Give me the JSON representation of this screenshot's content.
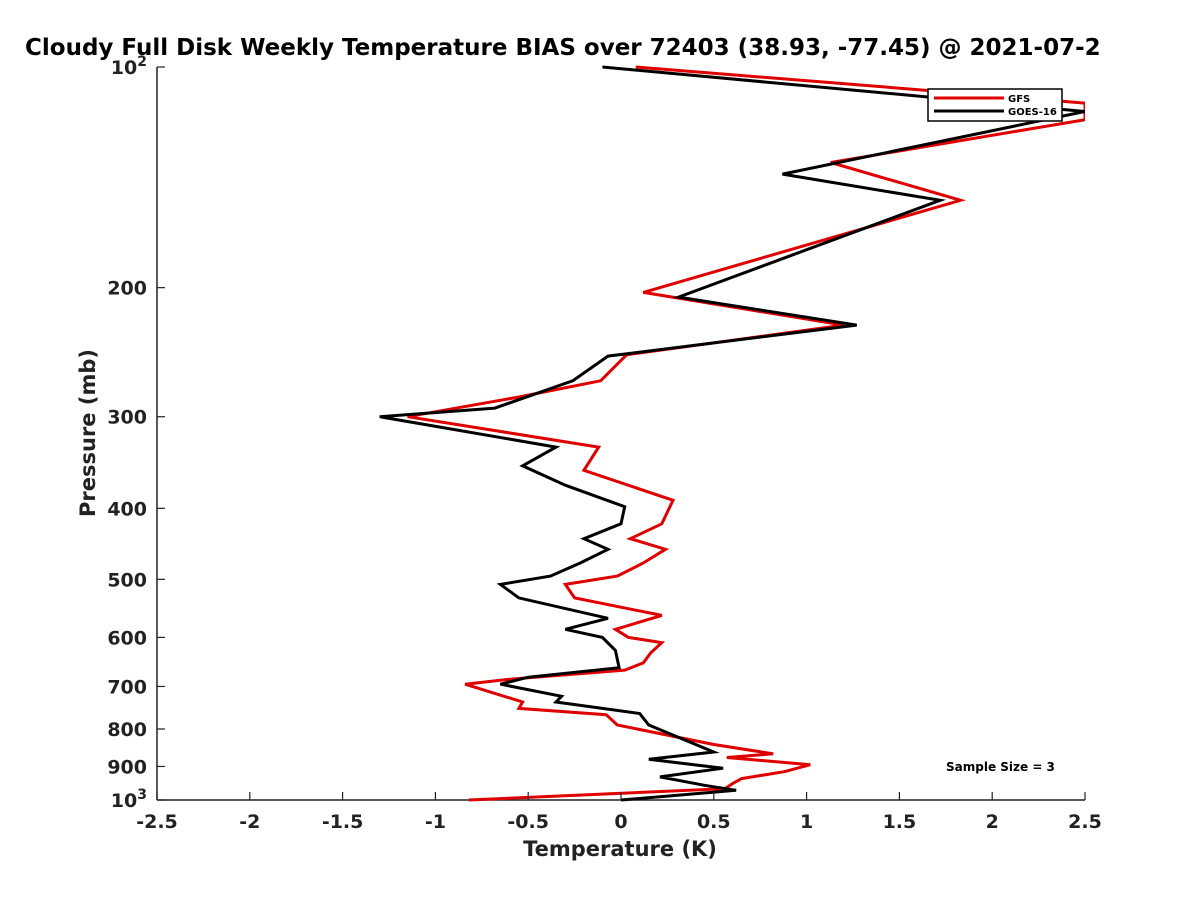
{
  "chart_data": {
    "type": "line",
    "title": "Cloudy Full Disk Weekly Temperature BIAS over 72403 (38.93, -77.45) @ 2021-07-2",
    "xlabel": "Temperature (K)",
    "ylabel": "Pressure (mb)",
    "xlim": [
      -2.5,
      2.5
    ],
    "ylim": [
      1000,
      100
    ],
    "yscale": "log",
    "y_reversed": true,
    "grid": false,
    "legend_position": "top-right",
    "x_ticks": [
      "-2.5",
      "-2",
      "-1.5",
      "-1",
      "-0.5",
      "0",
      "0.5",
      "1",
      "1.5",
      "2",
      "2.5"
    ],
    "x_tick_values": [
      -2.5,
      -2,
      -1.5,
      -1,
      -0.5,
      0,
      0.5,
      1,
      1.5,
      2,
      2.5
    ],
    "y_ticks": [
      {
        "value": 100,
        "base": "10",
        "exp": "2"
      },
      {
        "value": 200,
        "label": "200"
      },
      {
        "value": 300,
        "label": "300"
      },
      {
        "value": 400,
        "label": "400"
      },
      {
        "value": 500,
        "label": "500"
      },
      {
        "value": 600,
        "label": "600"
      },
      {
        "value": 700,
        "label": "700"
      },
      {
        "value": 800,
        "label": "800"
      },
      {
        "value": 900,
        "label": "900"
      },
      {
        "value": 1000,
        "base": "10",
        "exp": "3"
      }
    ],
    "annotation": "Sample Size = 3",
    "series": [
      {
        "name": "GFS",
        "color": "#e00000",
        "points": [
          [
            0.08,
            100
          ],
          [
            2.5,
            112
          ],
          [
            2.5,
            118
          ],
          [
            1.13,
            135
          ],
          [
            1.83,
            152
          ],
          [
            0.12,
            203
          ],
          [
            1.2,
            225
          ],
          [
            0.03,
            247
          ],
          [
            -0.11,
            268
          ],
          [
            -0.55,
            282
          ],
          [
            -1.15,
            300
          ],
          [
            -0.12,
            330
          ],
          [
            -0.2,
            355
          ],
          [
            0.28,
            390
          ],
          [
            0.22,
            420
          ],
          [
            0.05,
            440
          ],
          [
            0.24,
            455
          ],
          [
            0.12,
            475
          ],
          [
            -0.02,
            495
          ],
          [
            -0.3,
            508
          ],
          [
            -0.25,
            530
          ],
          [
            0.22,
            560
          ],
          [
            -0.03,
            585
          ],
          [
            0.04,
            600
          ],
          [
            0.22,
            610
          ],
          [
            0.16,
            630
          ],
          [
            0.12,
            650
          ],
          [
            0.02,
            665
          ],
          [
            -0.62,
            685
          ],
          [
            -0.84,
            695
          ],
          [
            -0.53,
            735
          ],
          [
            -0.55,
            750
          ],
          [
            -0.08,
            765
          ],
          [
            -0.02,
            790
          ],
          [
            0.5,
            840
          ],
          [
            0.82,
            865
          ],
          [
            0.57,
            875
          ],
          [
            1.02,
            895
          ],
          [
            0.88,
            915
          ],
          [
            0.65,
            935
          ],
          [
            0.6,
            950
          ],
          [
            0.56,
            965
          ],
          [
            -0.82,
            1000
          ]
        ]
      },
      {
        "name": "GOES-16",
        "color": "#000000",
        "points": [
          [
            -0.1,
            100
          ],
          [
            2.5,
            115
          ],
          [
            0.87,
            140
          ],
          [
            1.72,
            152
          ],
          [
            0.31,
            206
          ],
          [
            1.27,
            225
          ],
          [
            -0.07,
            248
          ],
          [
            -0.26,
            268
          ],
          [
            -0.68,
            292
          ],
          [
            -1.3,
            300
          ],
          [
            -0.35,
            330
          ],
          [
            -0.53,
            350
          ],
          [
            -0.3,
            372
          ],
          [
            0.02,
            398
          ],
          [
            0.0,
            420
          ],
          [
            -0.2,
            440
          ],
          [
            -0.07,
            455
          ],
          [
            -0.22,
            475
          ],
          [
            -0.38,
            495
          ],
          [
            -0.65,
            508
          ],
          [
            -0.55,
            530
          ],
          [
            -0.07,
            565
          ],
          [
            -0.3,
            585
          ],
          [
            -0.1,
            600
          ],
          [
            -0.03,
            625
          ],
          [
            -0.01,
            660
          ],
          [
            -0.5,
            680
          ],
          [
            -0.65,
            695
          ],
          [
            -0.32,
            722
          ],
          [
            -0.35,
            735
          ],
          [
            0.1,
            762
          ],
          [
            0.15,
            790
          ],
          [
            0.5,
            860
          ],
          [
            0.15,
            880
          ],
          [
            0.55,
            905
          ],
          [
            0.21,
            930
          ],
          [
            0.45,
            955
          ],
          [
            0.62,
            970
          ],
          [
            0.0,
            1000
          ]
        ]
      }
    ]
  }
}
